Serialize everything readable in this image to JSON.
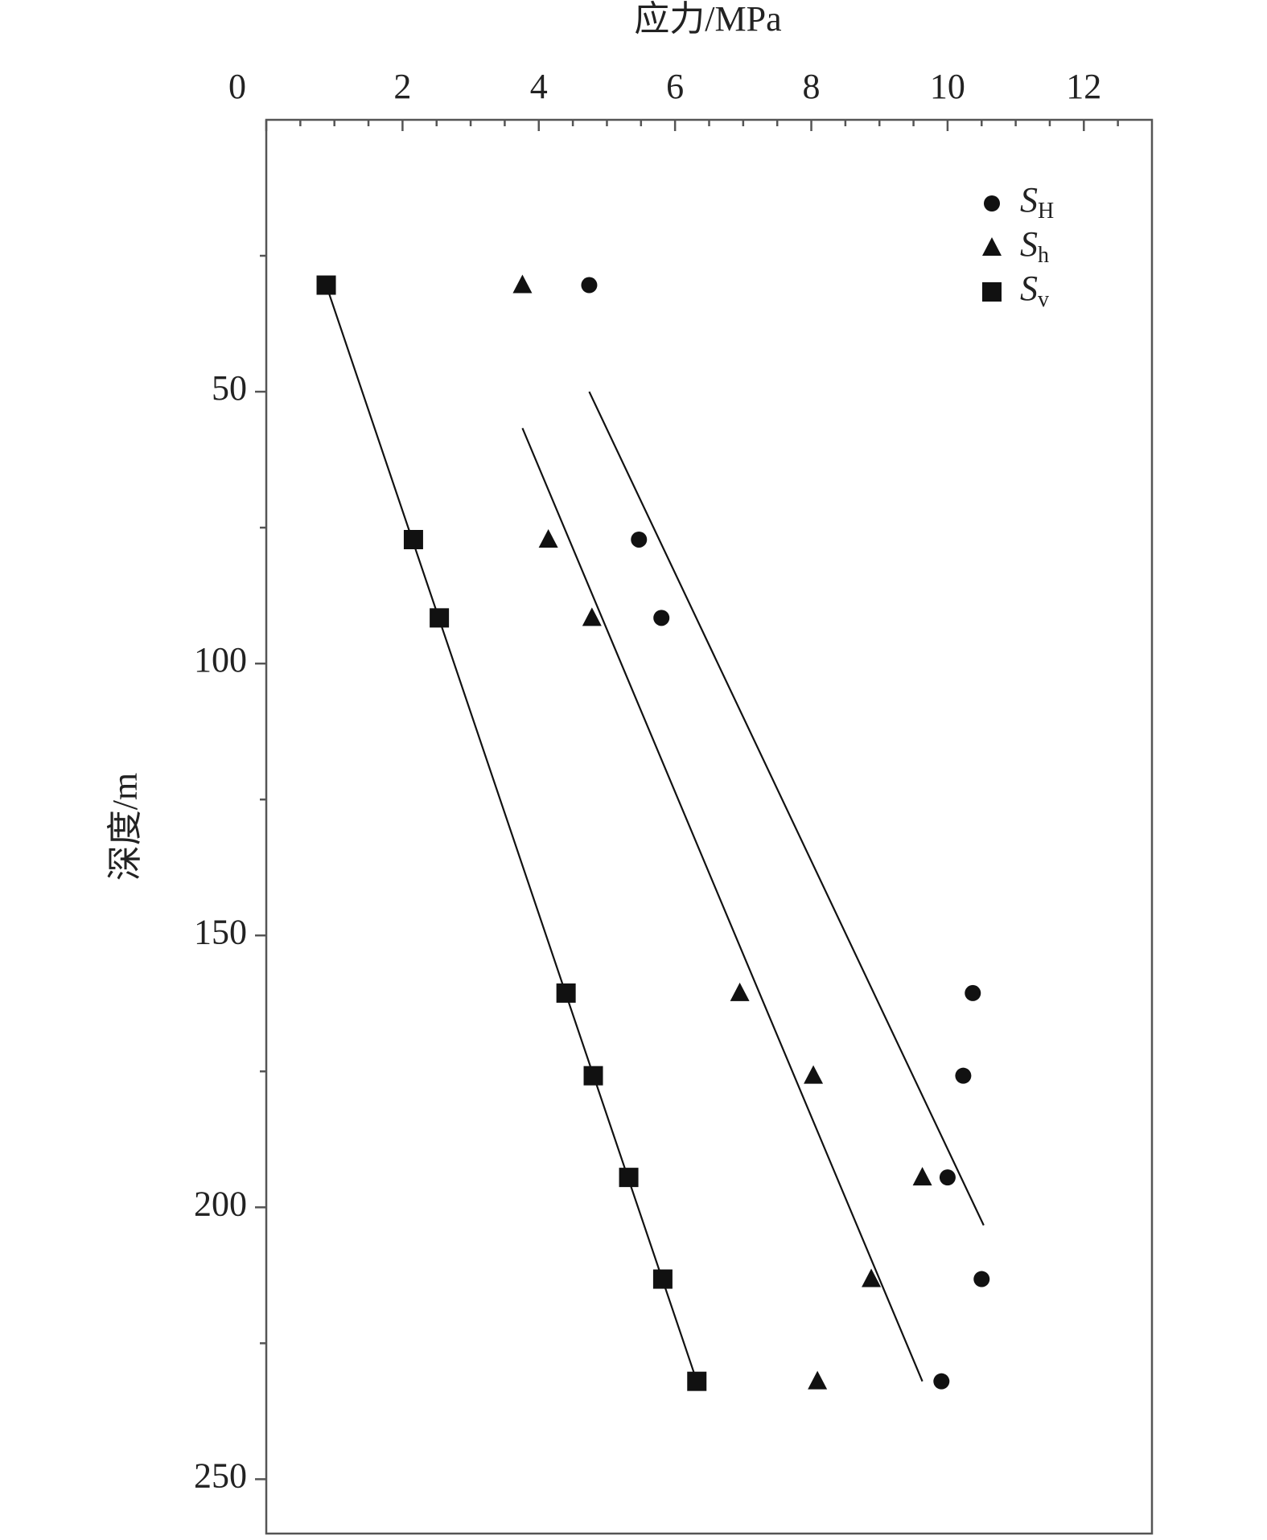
{
  "chart_data": {
    "type": "scatter",
    "x_label": "应力/MPa",
    "y_label": "深度/m",
    "xlim": [
      0,
      13
    ],
    "ylim": [
      0,
      260
    ],
    "y_inverted": true,
    "x_axis_position": "top",
    "xticks": [
      0,
      2,
      4,
      6,
      8,
      10,
      12
    ],
    "xminor": [
      0.5,
      1,
      1.5,
      2.5,
      3,
      3.5,
      4.5,
      5,
      5.5,
      6.5,
      7,
      7.5,
      8.5,
      9,
      9.5,
      10.5,
      11,
      11.5,
      12.5
    ],
    "yticks": [
      50,
      100,
      150,
      200,
      250
    ],
    "yminor": [
      25,
      75,
      125,
      175,
      225
    ],
    "legend": "upper right",
    "series": [
      {
        "name": "SH",
        "marker": "circle",
        "color": "#111111",
        "x": [
          4.74,
          5.47,
          5.8,
          10.37,
          10.23,
          10.0,
          10.5,
          9.91
        ],
        "y": [
          30.4,
          77.2,
          91.6,
          160.6,
          175.8,
          194.5,
          213.2,
          232
        ],
        "fit": {
          "x": [
            4.74,
            10.53
          ],
          "y": [
            50,
            203.3
          ]
        }
      },
      {
        "name": "Sh",
        "marker": "triangle",
        "color": "#111111",
        "x": [
          3.76,
          4.14,
          4.78,
          6.95,
          8.03,
          9.63,
          8.88,
          8.09
        ],
        "y": [
          30.4,
          77.2,
          91.6,
          160.6,
          175.8,
          194.5,
          213.2,
          232
        ],
        "fit": {
          "x": [
            3.76,
            9.63
          ],
          "y": [
            56.7,
            232
          ]
        }
      },
      {
        "name": "Sv",
        "marker": "square",
        "color": "#111111",
        "x": [
          0.88,
          2.16,
          2.54,
          4.4,
          4.8,
          5.32,
          5.82,
          6.32
        ],
        "y": [
          30.4,
          77.2,
          91.6,
          160.6,
          175.8,
          194.5,
          213.2,
          232
        ],
        "fit": {
          "x": [
            0.88,
            6.32
          ],
          "y": [
            30.4,
            232
          ]
        }
      }
    ]
  }
}
